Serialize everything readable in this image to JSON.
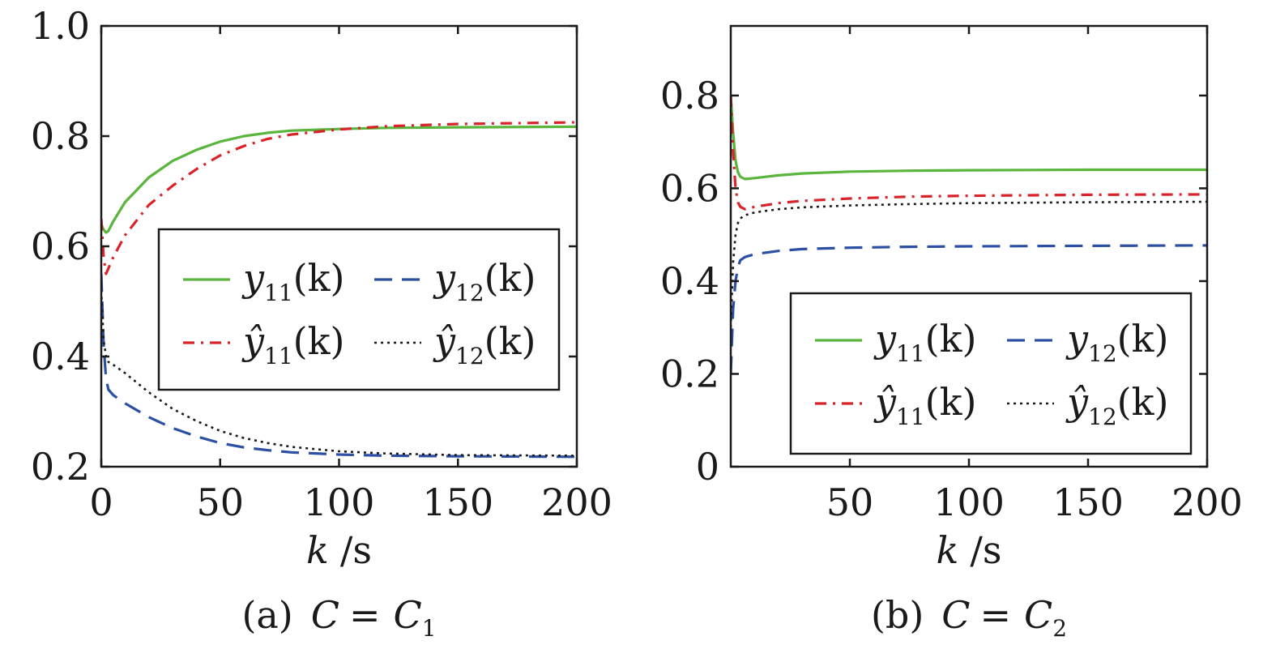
{
  "chart_data": [
    {
      "type": "line",
      "caption": "(a)  C =  C1",
      "caption_parts": {
        "prefix": "(a)",
        "lhs": "C",
        "eq": "=",
        "rhs": "C",
        "sub": "1"
      },
      "xlabel": "k /s",
      "xlabel_parts": {
        "var": "k",
        "unit": "/s"
      },
      "ylabel": "",
      "xlim": [
        0,
        200
      ],
      "ylim": [
        0.2,
        1.0
      ],
      "xticks": [
        "0",
        "50",
        "100",
        "150",
        "200"
      ],
      "yticks": [
        "0.2",
        "0.4",
        "0.6",
        "0.8",
        "1.0"
      ],
      "legend": "center",
      "series": [
        {
          "name": "y11(k)",
          "color": "#5ab53c",
          "style": "solid",
          "x": [
            0,
            1,
            2,
            3,
            5,
            10,
            20,
            30,
            40,
            50,
            60,
            70,
            80,
            100,
            120,
            150,
            200
          ],
          "y": [
            0.64,
            0.63,
            0.625,
            0.628,
            0.645,
            0.68,
            0.725,
            0.755,
            0.775,
            0.79,
            0.8,
            0.806,
            0.81,
            0.813,
            0.815,
            0.816,
            0.817
          ]
        },
        {
          "name": "ŷ11(k)",
          "color": "#d8232a",
          "style": "dashdot",
          "x": [
            0,
            1,
            2,
            3,
            5,
            10,
            20,
            30,
            40,
            50,
            60,
            70,
            80,
            100,
            120,
            150,
            200
          ],
          "y": [
            0.65,
            0.58,
            0.55,
            0.56,
            0.58,
            0.62,
            0.675,
            0.71,
            0.74,
            0.765,
            0.782,
            0.795,
            0.803,
            0.812,
            0.818,
            0.822,
            0.825
          ]
        },
        {
          "name": "y12(k)",
          "color": "#2c4fa3",
          "style": "dashed",
          "x": [
            0,
            1,
            2,
            3,
            5,
            10,
            20,
            30,
            40,
            50,
            60,
            70,
            80,
            100,
            120,
            150,
            200
          ],
          "y": [
            0.55,
            0.42,
            0.36,
            0.34,
            0.33,
            0.315,
            0.29,
            0.27,
            0.255,
            0.243,
            0.235,
            0.23,
            0.226,
            0.222,
            0.22,
            0.219,
            0.218
          ]
        },
        {
          "name": "ŷ12(k)",
          "color": "#1a1a1a",
          "style": "dotted",
          "x": [
            0,
            1,
            2,
            3,
            5,
            10,
            20,
            30,
            40,
            50,
            60,
            70,
            80,
            100,
            120,
            150,
            200
          ],
          "y": [
            0.52,
            0.43,
            0.4,
            0.39,
            0.385,
            0.37,
            0.335,
            0.305,
            0.283,
            0.265,
            0.252,
            0.243,
            0.236,
            0.228,
            0.224,
            0.221,
            0.22
          ]
        }
      ]
    },
    {
      "type": "line",
      "caption": "(b)  C =  C2",
      "caption_parts": {
        "prefix": "(b)",
        "lhs": "C",
        "eq": "=",
        "rhs": "C",
        "sub": "2"
      },
      "xlabel": "k /s",
      "xlabel_parts": {
        "var": "k",
        "unit": "/s"
      },
      "ylabel": "",
      "xlim": [
        0,
        200
      ],
      "ylim": [
        0,
        0.95
      ],
      "xticks": [
        "50",
        "100",
        "150",
        "200"
      ],
      "yticks": [
        "0",
        "0.2",
        "0.4",
        "0.6",
        "0.8"
      ],
      "legend": "lower-right",
      "series": [
        {
          "name": "y11(k)",
          "color": "#5ab53c",
          "style": "solid",
          "x": [
            0,
            1,
            2,
            3,
            4,
            6,
            10,
            20,
            30,
            50,
            75,
            100,
            150,
            200
          ],
          "y": [
            0.8,
            0.72,
            0.66,
            0.635,
            0.625,
            0.62,
            0.622,
            0.628,
            0.632,
            0.636,
            0.638,
            0.639,
            0.64,
            0.64
          ]
        },
        {
          "name": "ŷ11(k)",
          "color": "#d8232a",
          "style": "dashdot",
          "x": [
            0,
            1,
            2,
            3,
            4,
            6,
            10,
            20,
            30,
            50,
            75,
            100,
            150,
            200
          ],
          "y": [
            0.8,
            0.68,
            0.6,
            0.57,
            0.56,
            0.555,
            0.56,
            0.568,
            0.573,
            0.578,
            0.582,
            0.584,
            0.586,
            0.587
          ]
        },
        {
          "name": "y12(k)",
          "color": "#2c4fa3",
          "style": "dashed",
          "x": [
            0,
            1,
            2,
            3,
            4,
            6,
            10,
            20,
            30,
            50,
            75,
            100,
            150,
            200
          ],
          "y": [
            0.2,
            0.34,
            0.4,
            0.43,
            0.445,
            0.452,
            0.458,
            0.465,
            0.469,
            0.472,
            0.474,
            0.475,
            0.476,
            0.477
          ]
        },
        {
          "name": "ŷ12(k)",
          "color": "#1a1a1a",
          "style": "dotted",
          "x": [
            0,
            1,
            2,
            3,
            4,
            6,
            10,
            20,
            30,
            50,
            75,
            100,
            150,
            200
          ],
          "y": [
            0.3,
            0.44,
            0.5,
            0.525,
            0.535,
            0.542,
            0.548,
            0.555,
            0.559,
            0.563,
            0.566,
            0.568,
            0.57,
            0.571
          ]
        }
      ]
    }
  ]
}
